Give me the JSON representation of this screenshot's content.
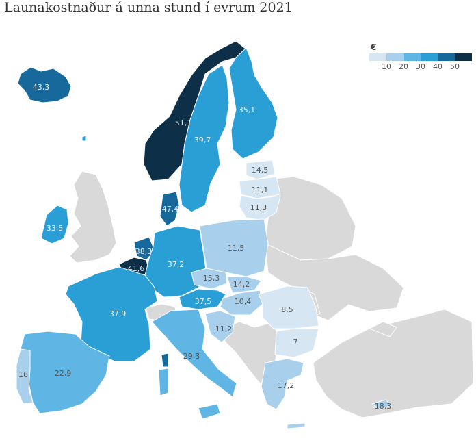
{
  "title": "Launakostnaður á unna stund í evrum 2021",
  "legend": {
    "unit": "€",
    "ticks": [
      "10",
      "20",
      "30",
      "40",
      "50"
    ],
    "colors": [
      "#d6e6f2",
      "#a8d0ec",
      "#5fb5e3",
      "#2a9fd6",
      "#17699b",
      "#0d2f47"
    ]
  },
  "colors": {
    "no_data": "#d9d9d9",
    "border": "#ffffff"
  },
  "countries": [
    {
      "name": "Iceland",
      "value": "43,3"
    },
    {
      "name": "Norway",
      "value": "51,1"
    },
    {
      "name": "Sweden",
      "value": "39,7"
    },
    {
      "name": "Finland",
      "value": "35,1"
    },
    {
      "name": "Estonia",
      "value": "14,5"
    },
    {
      "name": "Latvia",
      "value": "11,1"
    },
    {
      "name": "Lithuania",
      "value": "11,3"
    },
    {
      "name": "Denmark",
      "value": "47,4"
    },
    {
      "name": "Ireland",
      "value": "33,5"
    },
    {
      "name": "Netherlands",
      "value": "38,3"
    },
    {
      "name": "Belgium",
      "value": "41,6"
    },
    {
      "name": "Germany",
      "value": "37,2"
    },
    {
      "name": "Poland",
      "value": "11,5"
    },
    {
      "name": "Czechia",
      "value": "15,3"
    },
    {
      "name": "Slovakia",
      "value": "14,2"
    },
    {
      "name": "Austria",
      "value": "37,5"
    },
    {
      "name": "Hungary",
      "value": "10,4"
    },
    {
      "name": "Romania",
      "value": "8,5"
    },
    {
      "name": "Bulgaria",
      "value": "7"
    },
    {
      "name": "Croatia",
      "value": "11,2"
    },
    {
      "name": "France",
      "value": "37,9"
    },
    {
      "name": "Italy",
      "value": "29,3"
    },
    {
      "name": "Spain",
      "value": "22,9"
    },
    {
      "name": "Portugal",
      "value": "16"
    },
    {
      "name": "Greece",
      "value": "17,2"
    },
    {
      "name": "Cyprus",
      "value": "18,3"
    }
  ]
}
